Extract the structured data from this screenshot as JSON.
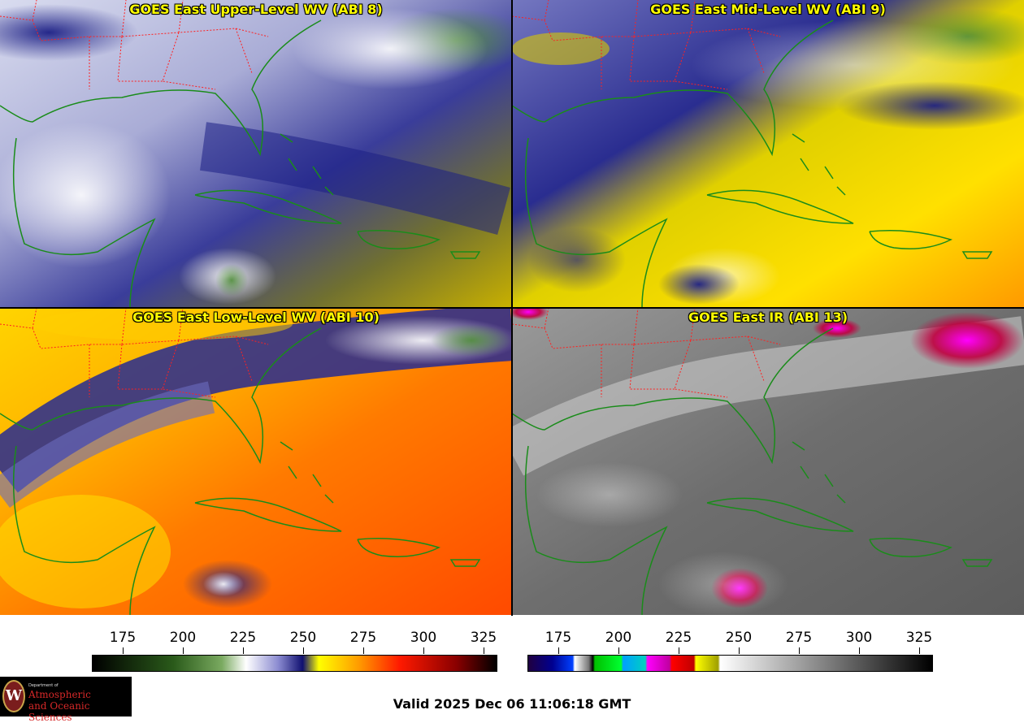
{
  "panels": [
    {
      "title": "GOES East Upper-Level WV (ABI 8)"
    },
    {
      "title": "GOES East Mid-Level WV (ABI 9)"
    },
    {
      "title": "GOES East Low-Level WV (ABI 10)"
    },
    {
      "title": "GOES East IR (ABI 13)"
    }
  ],
  "colorbars": [
    {
      "name": "water-vapor",
      "ticks": [
        "175",
        "200",
        "225",
        "250",
        "275",
        "300",
        "325"
      ]
    },
    {
      "name": "infrared",
      "ticks": [
        "175",
        "200",
        "225",
        "250",
        "275",
        "300",
        "325"
      ]
    }
  ],
  "logo": {
    "dept": "Department of",
    "line1": "Atmospheric",
    "line2": "and Oceanic Sciences",
    "seal": "W"
  },
  "valid_time": "Valid 2025 Dec 06 11:06:18 GMT",
  "colors": {
    "state_borders": "#ff2020",
    "coastline": "#1a8c1a",
    "title_text": "#ffff00"
  }
}
